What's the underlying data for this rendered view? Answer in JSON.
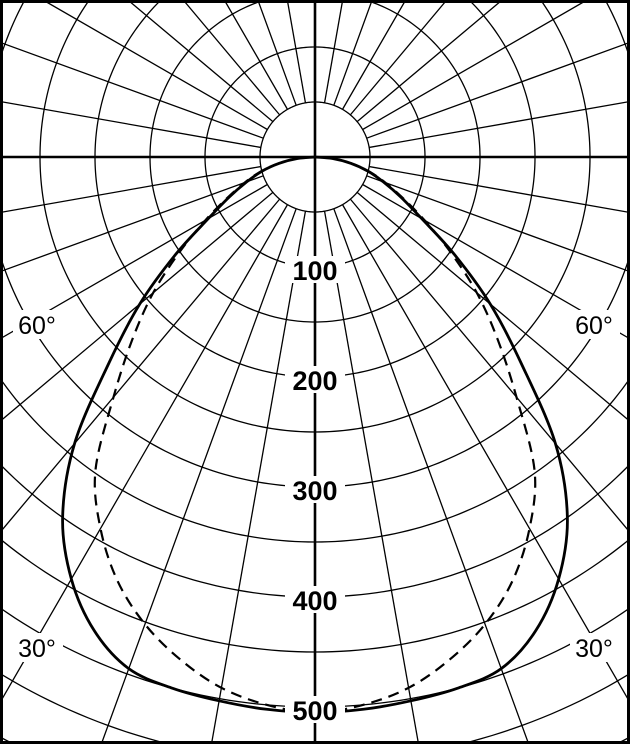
{
  "chart_data": {
    "type": "polar",
    "title": "",
    "angle_unit": "degrees",
    "radial_tick_labels": [
      "100",
      "200",
      "300",
      "400",
      "500"
    ],
    "radial_ticks": [
      100,
      200,
      300,
      400,
      500
    ],
    "angle_labels": [
      {
        "text": "60°",
        "angle": 60,
        "side": "left"
      },
      {
        "text": "60°",
        "angle": 60,
        "side": "right"
      },
      {
        "text": "30°",
        "angle": 30,
        "side": "left"
      },
      {
        "text": "30°",
        "angle": 30,
        "side": "right"
      }
    ],
    "grid": {
      "circle_step": 50,
      "radial_step_deg": 10,
      "on": true
    },
    "rlim": [
      0,
      650
    ],
    "symmetric": true,
    "series": [
      {
        "style": "solid",
        "color": "#000000",
        "angles": [
          0,
          5,
          10,
          15,
          20,
          25,
          30,
          35,
          40,
          45,
          50,
          55,
          60,
          65,
          70,
          75,
          80,
          85,
          90
        ],
        "values": [
          505,
          504,
          502,
          500,
          495,
          475,
          443,
          400,
          340,
          265,
          208,
          155,
          112,
          86,
          66,
          50,
          33,
          16,
          0
        ]
      },
      {
        "style": "dashed",
        "color": "#000000",
        "angles": [
          0,
          5,
          10,
          15,
          20,
          25,
          30,
          35,
          40,
          45,
          50,
          55,
          60,
          65,
          70,
          75,
          80,
          85,
          90
        ],
        "values": [
          505,
          500,
          490,
          473,
          452,
          425,
          390,
          348,
          285,
          235,
          192,
          150,
          115,
          88,
          68,
          51,
          34,
          17,
          0
        ]
      }
    ]
  }
}
